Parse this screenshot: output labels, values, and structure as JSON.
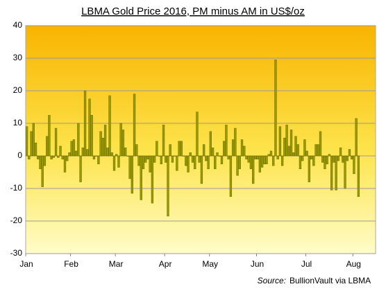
{
  "chart_data": {
    "type": "bar",
    "title": "LBMA Gold Price 2016, PM minus AM in US$/oz",
    "source_label": "Source:",
    "source": "BullionVault via LBMA",
    "color": "#999900",
    "grid": true,
    "ylim": [
      -30,
      40
    ],
    "yticks": [
      -30,
      -20,
      -10,
      0,
      10,
      20,
      30,
      40
    ],
    "categories": [
      "Jan",
      null,
      null,
      null,
      null,
      null,
      null,
      null,
      null,
      null,
      null,
      null,
      null,
      null,
      null,
      null,
      null,
      null,
      null,
      null,
      "Feb",
      null,
      null,
      null,
      null,
      null,
      null,
      null,
      null,
      null,
      null,
      null,
      null,
      null,
      null,
      null,
      null,
      null,
      null,
      null,
      "Mar",
      null,
      null,
      null,
      null,
      null,
      null,
      null,
      null,
      null,
      null,
      null,
      null,
      null,
      null,
      null,
      null,
      null,
      null,
      null,
      null,
      null,
      "Apr",
      null,
      null,
      null,
      null,
      null,
      null,
      null,
      null,
      null,
      null,
      null,
      null,
      null,
      null,
      null,
      null,
      null,
      null,
      null,
      "May",
      null,
      null,
      null,
      null,
      null,
      null,
      null,
      null,
      null,
      null,
      null,
      null,
      null,
      null,
      null,
      null,
      null,
      null,
      null,
      null,
      "Jun",
      null,
      null,
      null,
      null,
      null,
      null,
      null,
      null,
      null,
      null,
      null,
      null,
      null,
      null,
      null,
      null,
      null,
      null,
      null,
      null,
      null,
      "Jul",
      null,
      null,
      null,
      null,
      null,
      null,
      null,
      null,
      null,
      null,
      null,
      null,
      null,
      null,
      null,
      null,
      null,
      null,
      null,
      null,
      "Aug",
      null,
      null
    ],
    "values": [
      9,
      -1,
      7.5,
      10,
      4,
      -1,
      -4,
      -9.5,
      -3,
      6,
      12.5,
      -1,
      -0.5,
      8.5,
      -0.5,
      3,
      -1,
      -5,
      -1.5,
      1,
      4.5,
      5,
      1.5,
      10,
      -8,
      2.5,
      20,
      2,
      17.5,
      12.5,
      -1,
      0,
      -2.5,
      7.5,
      5.5,
      9.5,
      2.5,
      18.5,
      1,
      -4.5,
      0.5,
      -3.5,
      10,
      8,
      2.5,
      0,
      -7,
      -11.5,
      19,
      3.5,
      -3,
      -13.5,
      -4,
      -2,
      -1,
      -5,
      -14.5,
      -2,
      4.5,
      0,
      -2.5,
      9.5,
      -2,
      -18.5,
      3.5,
      -2,
      0,
      -4.5,
      4.5,
      4.5,
      0,
      -3,
      -5,
      1,
      -2,
      -4,
      13.5,
      -2,
      -8.5,
      3.5,
      -1.5,
      -4,
      7.5,
      2.5,
      -4,
      1,
      0,
      -2.5,
      4.5,
      9.5,
      -1,
      -12.5,
      5,
      8.5,
      -6,
      -4,
      5,
      3,
      -1,
      -2,
      -4,
      -8.5,
      -1,
      -1,
      -5,
      -3.5,
      -2.5,
      -2.5,
      0.5,
      1.5,
      -3,
      29.5,
      -1,
      9,
      -3,
      5.5,
      9.5,
      3,
      8,
      1,
      6,
      3.5,
      -4,
      -1.5,
      5,
      1.5,
      -8,
      -1,
      -3,
      3.5,
      3.5,
      7.5,
      -2,
      -4,
      -2.5,
      0.5,
      -10.5,
      -2,
      -10.5,
      -1.5,
      2.5,
      -2,
      -10,
      -1.5,
      2,
      -1,
      -5.5,
      11.5,
      -12.5
    ]
  }
}
